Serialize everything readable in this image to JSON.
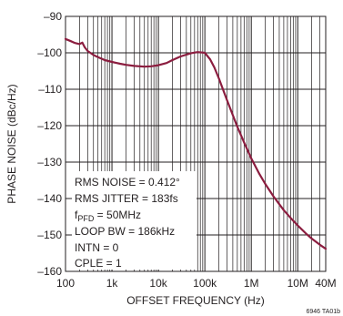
{
  "chart_data": {
    "type": "line",
    "title": "",
    "xlabel": "OFFSET FREQUENCY (Hz)",
    "ylabel": "PHASE NOISE (dBc/Hz)",
    "xscale": "log",
    "xlim": [
      100,
      40000000
    ],
    "ylim": [
      -160,
      -90
    ],
    "grid": true,
    "line_color": "#8b1d3f",
    "xticks": [
      {
        "value": 100,
        "label": "100"
      },
      {
        "value": 1000,
        "label": "1k"
      },
      {
        "value": 10000,
        "label": "10k"
      },
      {
        "value": 100000,
        "label": "100k"
      },
      {
        "value": 1000000,
        "label": "1M"
      },
      {
        "value": 10000000,
        "label": "10M"
      },
      {
        "value": 40000000,
        "label": "40M"
      }
    ],
    "yticks": [
      {
        "value": -90,
        "label": "–90"
      },
      {
        "value": -100,
        "label": "–100"
      },
      {
        "value": -110,
        "label": "–110"
      },
      {
        "value": -120,
        "label": "–120"
      },
      {
        "value": -130,
        "label": "–130"
      },
      {
        "value": -140,
        "label": "–140"
      },
      {
        "value": -150,
        "label": "–150"
      },
      {
        "value": -160,
        "label": "–160"
      }
    ],
    "series": [
      {
        "x": [
          100,
          130,
          160,
          200,
          230,
          260,
          300,
          400,
          500,
          700,
          1000,
          1500,
          2000,
          3000,
          5000,
          7000,
          10000,
          15000,
          20000,
          30000,
          50000,
          70000,
          100000,
          130000,
          160000,
          200000,
          300000,
          500000,
          700000,
          1000000,
          1500000,
          2000000,
          3000000,
          5000000,
          7000000,
          10000000,
          15000000,
          20000000,
          30000000,
          40000000
        ],
        "y": [
          -96.2,
          -96.8,
          -97.3,
          -97.6,
          -97.2,
          -98.5,
          -99.5,
          -100.6,
          -101.2,
          -102.0,
          -102.5,
          -103.0,
          -103.3,
          -103.6,
          -103.8,
          -103.7,
          -103.4,
          -102.8,
          -102.0,
          -101.0,
          -100.1,
          -99.8,
          -100.0,
          -101.8,
          -104.0,
          -107.0,
          -113.0,
          -120.3,
          -124.6,
          -129.0,
          -133.3,
          -136.0,
          -139.4,
          -143.2,
          -145.3,
          -147.4,
          -149.6,
          -151.0,
          -152.7,
          -153.8
        ]
      }
    ],
    "annotations": [
      "RMS NOISE = 0.412°",
      "RMS JITTER = 183fs",
      "LOOP BW = 186kHz",
      "INTN = 0",
      "CPLE = 1"
    ],
    "fpfd_label": {
      "prefix": "f",
      "subscript": "PFD",
      "suffix": " = 50MHz"
    },
    "figure_id": "6946 TA01b"
  }
}
